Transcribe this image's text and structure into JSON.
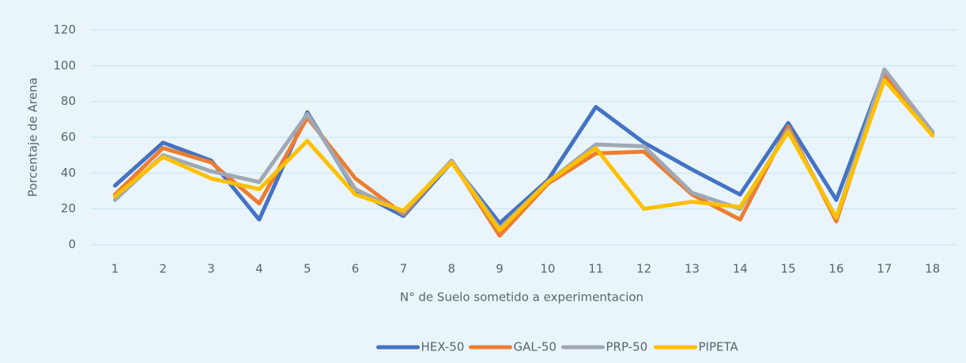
{
  "chart_data": {
    "type": "line",
    "x_label": "N° de Suelo sometido a experimentacion",
    "y_label": "Porcentaje de Arena",
    "categories": [
      "1",
      "2",
      "3",
      "4",
      "5",
      "6",
      "7",
      "8",
      "9",
      "10",
      "11",
      "12",
      "13",
      "14",
      "15",
      "16",
      "17",
      "18"
    ],
    "series": [
      {
        "name": "HEX-50",
        "color": "#4472c4",
        "values": [
          33,
          57,
          47,
          14,
          74,
          30,
          16,
          46,
          12,
          36,
          77,
          57,
          42,
          28,
          68,
          25,
          97,
          63
        ]
      },
      {
        "name": "GAL-50",
        "color": "#ed7d31",
        "values": [
          28,
          54,
          46,
          23,
          71,
          37,
          17,
          47,
          5,
          34,
          51,
          52,
          28,
          14,
          66,
          13,
          95,
          62
        ]
      },
      {
        "name": "PRP-50",
        "color": "#a0a8b4",
        "values": [
          25,
          50,
          41,
          35,
          73,
          31,
          18,
          47,
          9,
          35,
          56,
          55,
          29,
          20,
          64,
          15,
          98,
          63
        ]
      },
      {
        "name": "PIPETA",
        "color": "#ffc000",
        "values": [
          27,
          49,
          37,
          31,
          58,
          28,
          19,
          46,
          8,
          35,
          54,
          20,
          24,
          21,
          63,
          15,
          92,
          61
        ]
      }
    ],
    "ylim": [
      0,
      120
    ],
    "yticks": [
      0,
      20,
      40,
      60,
      80,
      100,
      120
    ],
    "grid": true,
    "legend": "bottom"
  }
}
